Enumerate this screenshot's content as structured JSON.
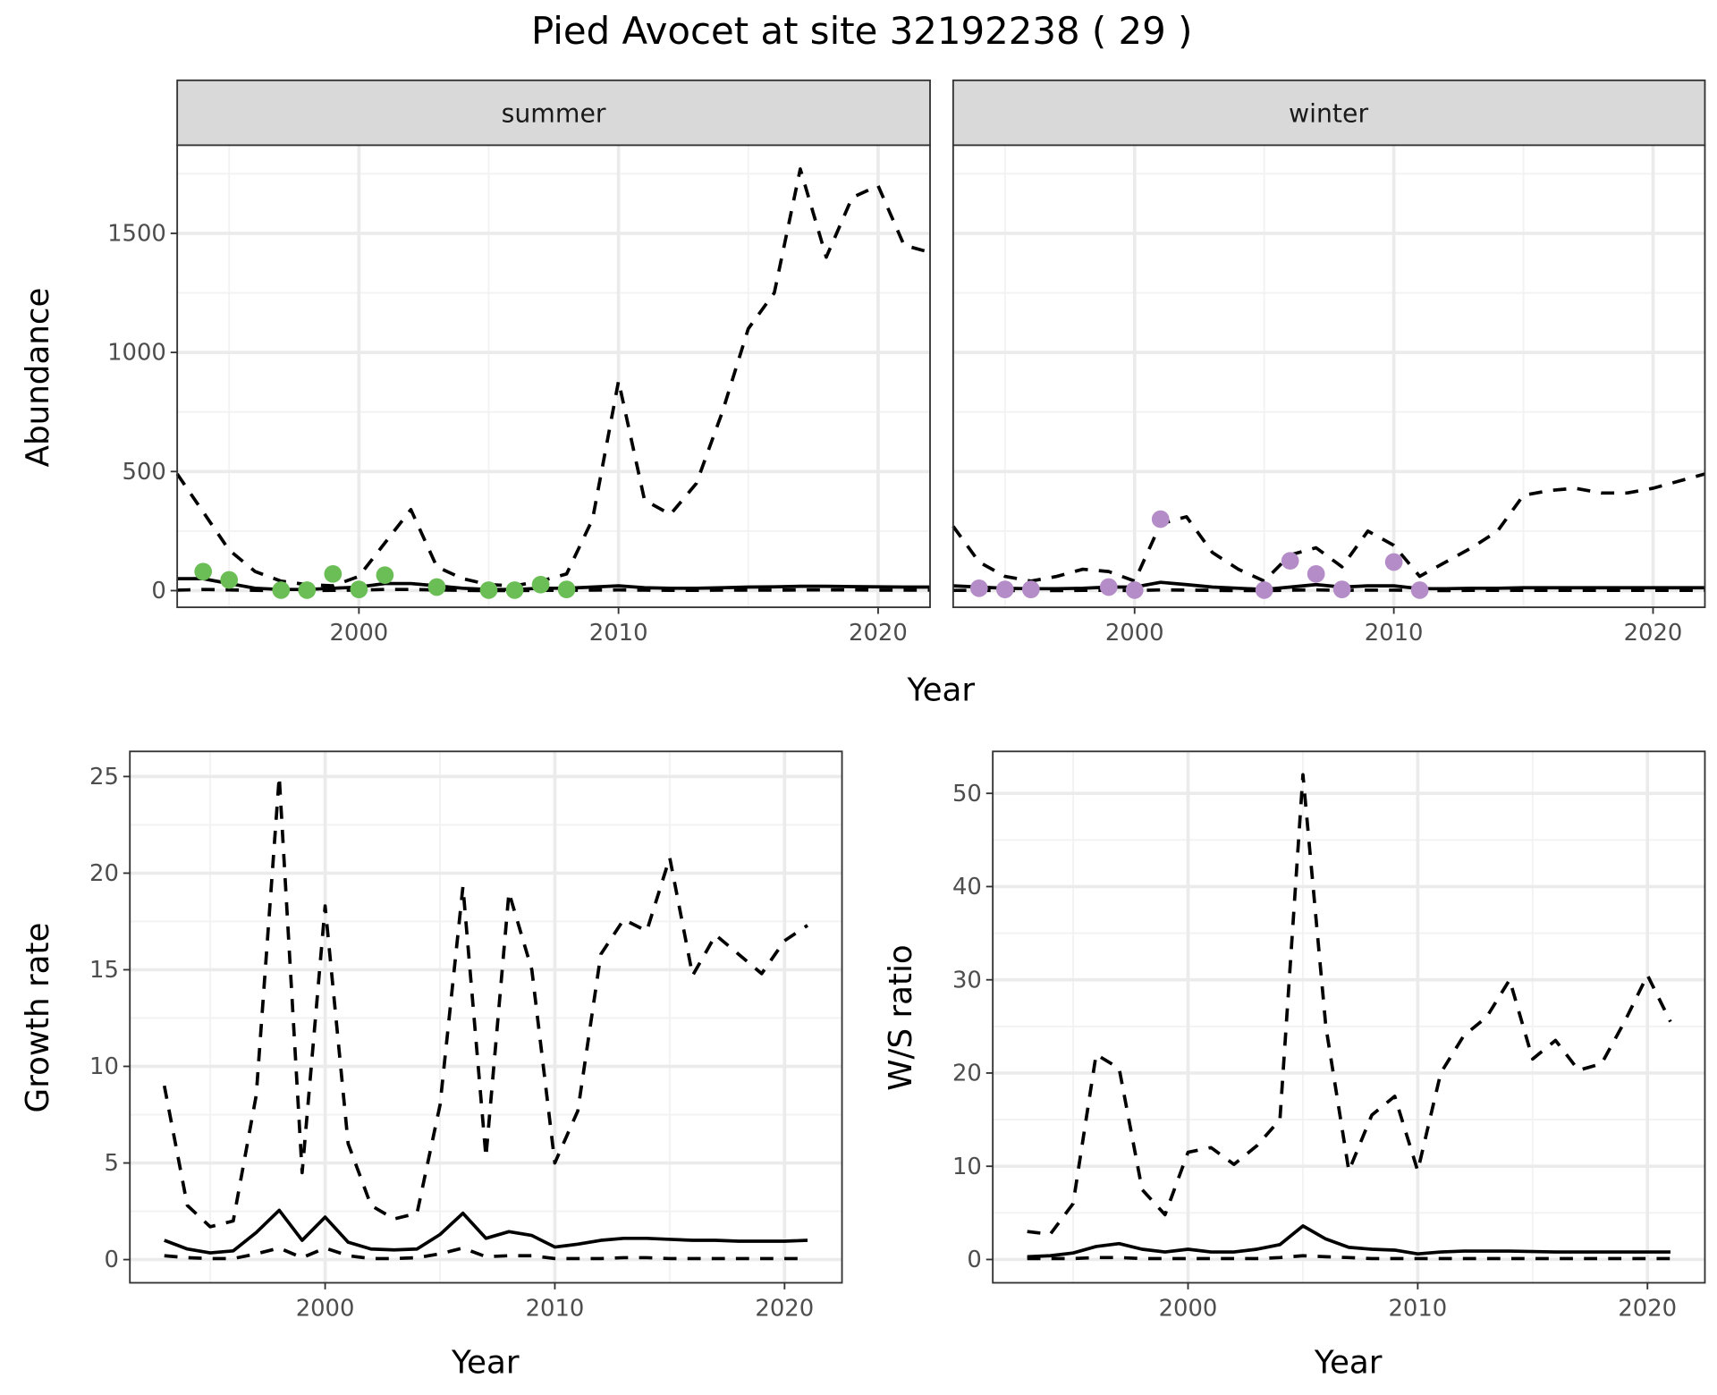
{
  "chart_data": [
    {
      "type": "line",
      "title": "Pied Avocet at site 32192238 ( 29 )",
      "facet": "summer",
      "xlabel": "Year",
      "ylabel": "Abundance",
      "xlim": [
        1993,
        2022
      ],
      "ylim": [
        -70,
        1870
      ],
      "xticks": [
        2000,
        2010,
        2020
      ],
      "yticks": [
        0,
        500,
        1000,
        1500
      ],
      "grid": true,
      "x": [
        1993,
        1994,
        1995,
        1996,
        1997,
        1998,
        1999,
        2000,
        2001,
        2002,
        2003,
        2004,
        2005,
        2006,
        2007,
        2008,
        2009,
        2010,
        2011,
        2012,
        2013,
        2014,
        2015,
        2016,
        2017,
        2018,
        2019,
        2020,
        2021,
        2022
      ],
      "series": [
        {
          "style": "dashed",
          "values": [
            490,
            330,
            170,
            80,
            40,
            25,
            20,
            60,
            200,
            340,
            100,
            50,
            25,
            20,
            40,
            70,
            300,
            880,
            380,
            320,
            450,
            750,
            1100,
            1250,
            1770,
            1400,
            1650,
            1700,
            1450,
            1420
          ]
        },
        {
          "style": "solid",
          "values": [
            50,
            50,
            30,
            10,
            5,
            5,
            10,
            15,
            30,
            30,
            20,
            10,
            5,
            5,
            10,
            10,
            15,
            20,
            12,
            10,
            10,
            12,
            15,
            16,
            18,
            18,
            17,
            16,
            15,
            15
          ]
        },
        {
          "style": "dashed",
          "values": [
            2,
            5,
            3,
            1,
            0,
            0,
            1,
            2,
            5,
            5,
            3,
            1,
            0,
            0,
            1,
            1,
            2,
            3,
            2,
            1,
            1,
            2,
            2,
            2,
            3,
            3,
            3,
            2,
            2,
            2
          ]
        }
      ],
      "points": {
        "color": "#6BBE55",
        "x": [
          1994,
          1995,
          1997,
          1998,
          1999,
          2000,
          2001,
          2003,
          2005,
          2006,
          2007,
          2008
        ],
        "y": [
          80,
          45,
          2,
          2,
          70,
          5,
          65,
          15,
          2,
          2,
          25,
          5
        ]
      }
    },
    {
      "type": "line",
      "facet": "winter",
      "xlabel": "Year",
      "ylabel": "Abundance",
      "xlim": [
        1993,
        2022
      ],
      "ylim": [
        -70,
        1870
      ],
      "xticks": [
        2000,
        2010,
        2020
      ],
      "yticks": [
        0,
        500,
        1000,
        1500
      ],
      "grid": true,
      "x": [
        1993,
        1994,
        1995,
        1996,
        1997,
        1998,
        1999,
        2000,
        2001,
        2002,
        2003,
        2004,
        2005,
        2006,
        2007,
        2008,
        2009,
        2010,
        2011,
        2012,
        2013,
        2014,
        2015,
        2016,
        2017,
        2018,
        2019,
        2020,
        2021,
        2022
      ],
      "series": [
        {
          "style": "dashed",
          "values": [
            270,
            120,
            60,
            40,
            60,
            90,
            80,
            40,
            280,
            310,
            160,
            90,
            40,
            150,
            180,
            100,
            250,
            190,
            60,
            120,
            180,
            250,
            400,
            420,
            430,
            410,
            410,
            430,
            460,
            490
          ]
        },
        {
          "style": "solid",
          "values": [
            20,
            15,
            10,
            8,
            8,
            10,
            15,
            15,
            35,
            25,
            15,
            10,
            5,
            15,
            25,
            15,
            20,
            20,
            8,
            8,
            10,
            10,
            12,
            12,
            12,
            12,
            12,
            12,
            12,
            12
          ]
        },
        {
          "style": "dashed",
          "values": [
            1,
            1,
            0,
            0,
            0,
            1,
            1,
            0,
            3,
            2,
            1,
            0,
            0,
            2,
            3,
            1,
            2,
            2,
            0,
            0,
            1,
            1,
            1,
            1,
            1,
            1,
            1,
            1,
            1,
            1
          ]
        }
      ],
      "points": {
        "color": "#B48CC8",
        "x": [
          1994,
          1995,
          1996,
          1999,
          2000,
          2001,
          2005,
          2006,
          2007,
          2008,
          2010,
          2011
        ],
        "y": [
          10,
          5,
          5,
          15,
          2,
          300,
          2,
          125,
          70,
          5,
          120,
          2
        ]
      }
    },
    {
      "type": "line",
      "xlabel": "Year",
      "ylabel": "Growth rate",
      "xlim": [
        1991.5,
        2022.5
      ],
      "ylim": [
        -1.2,
        26.3
      ],
      "xticks": [
        2000,
        2010,
        2020
      ],
      "yticks": [
        0,
        5,
        10,
        15,
        20,
        25
      ],
      "grid": true,
      "x": [
        1993,
        1994,
        1995,
        1996,
        1997,
        1998,
        1999,
        2000,
        2001,
        2002,
        2003,
        2004,
        2005,
        2006,
        2007,
        2008,
        2009,
        2010,
        2011,
        2012,
        2013,
        2014,
        2015,
        2016,
        2017,
        2018,
        2019,
        2020,
        2021
      ],
      "series": [
        {
          "style": "dashed",
          "values": [
            9,
            2.8,
            1.7,
            2,
            8.5,
            25,
            4.5,
            18.3,
            6,
            2.8,
            2.1,
            2.4,
            8,
            19.3,
            5.3,
            19,
            15,
            5,
            7.7,
            15.8,
            17.6,
            17,
            20.8,
            14.7,
            16.8,
            15.8,
            14.8,
            16.5,
            17.3
          ]
        },
        {
          "style": "solid",
          "values": [
            1.0,
            0.55,
            0.35,
            0.45,
            1.4,
            2.55,
            1.0,
            2.2,
            0.9,
            0.55,
            0.5,
            0.55,
            1.3,
            2.4,
            1.1,
            1.45,
            1.25,
            0.65,
            0.8,
            1.0,
            1.1,
            1.1,
            1.05,
            1.0,
            1.0,
            0.95,
            0.95,
            0.95,
            1.0
          ]
        },
        {
          "style": "dashed",
          "values": [
            0.2,
            0.1,
            0.05,
            0.05,
            0.3,
            0.6,
            0.1,
            0.6,
            0.2,
            0.05,
            0.05,
            0.1,
            0.3,
            0.6,
            0.15,
            0.2,
            0.2,
            0.05,
            0.05,
            0.05,
            0.1,
            0.1,
            0.05,
            0.05,
            0.05,
            0.05,
            0.05,
            0.05,
            0.05
          ]
        }
      ]
    },
    {
      "type": "line",
      "xlabel": "Year",
      "ylabel": "W/S ratio",
      "xlim": [
        1991.5,
        2022.5
      ],
      "ylim": [
        -2.5,
        54.5
      ],
      "xticks": [
        2000,
        2010,
        2020
      ],
      "yticks": [
        0,
        10,
        20,
        30,
        40,
        50
      ],
      "grid": true,
      "x": [
        1993,
        1994,
        1995,
        1996,
        1997,
        1998,
        1999,
        2000,
        2001,
        2002,
        2003,
        2004,
        2005,
        2006,
        2007,
        2008,
        2009,
        2010,
        2011,
        2012,
        2013,
        2014,
        2015,
        2016,
        2017,
        2018,
        2019,
        2020,
        2021
      ],
      "series": [
        {
          "style": "dashed",
          "values": [
            3,
            2.7,
            6,
            22,
            20.5,
            7.5,
            4.8,
            11.5,
            12,
            10.2,
            12.2,
            15,
            52,
            25,
            9.5,
            15.5,
            17.5,
            9.5,
            20,
            24,
            26,
            30,
            21.5,
            23.5,
            20.3,
            21,
            25.5,
            30.5,
            25.5
          ]
        },
        {
          "style": "solid",
          "values": [
            0.3,
            0.4,
            0.7,
            1.4,
            1.7,
            1.1,
            0.8,
            1.1,
            0.8,
            0.8,
            1.1,
            1.6,
            3.6,
            2.2,
            1.3,
            1.1,
            1.0,
            0.6,
            0.8,
            0.9,
            0.9,
            0.9,
            0.85,
            0.8,
            0.8,
            0.8,
            0.8,
            0.8,
            0.8
          ]
        },
        {
          "style": "dashed",
          "values": [
            0.1,
            0.1,
            0.1,
            0.2,
            0.2,
            0.1,
            0.1,
            0.1,
            0.1,
            0.1,
            0.1,
            0.2,
            0.4,
            0.3,
            0.2,
            0.1,
            0.1,
            0.1,
            0.1,
            0.1,
            0.1,
            0.1,
            0.1,
            0.1,
            0.1,
            0.1,
            0.1,
            0.1,
            0.1
          ]
        }
      ]
    }
  ]
}
